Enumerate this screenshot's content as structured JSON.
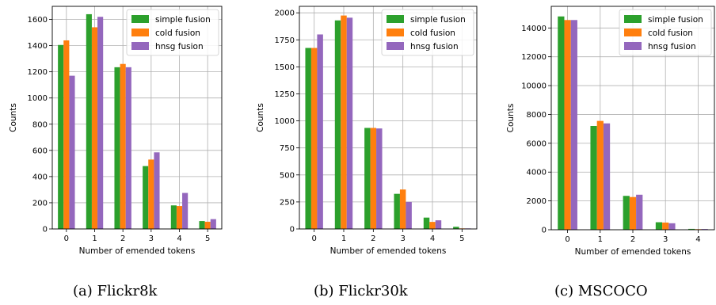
{
  "colors": {
    "simple": "#2ca02c",
    "cold": "#ff7f0e",
    "hnsg": "#9467bd",
    "grid": "#b0b0b0"
  },
  "chart_data": [
    {
      "type": "bar",
      "caption": "(a) Flickr8k",
      "xlabel": "Number of emended tokens",
      "ylabel": "Counts",
      "categories": [
        "0",
        "1",
        "2",
        "3",
        "4",
        "5"
      ],
      "ylim": [
        0,
        1700
      ],
      "yticks": [
        0,
        200,
        400,
        600,
        800,
        1000,
        1200,
        1400,
        1600
      ],
      "grid": true,
      "legend_position": "top-right",
      "series": [
        {
          "name": "simple fusion",
          "color": "#2ca02c",
          "values": [
            1405,
            1640,
            1235,
            480,
            180,
            60
          ]
        },
        {
          "name": "cold fusion",
          "color": "#ff7f0e",
          "values": [
            1440,
            1540,
            1260,
            530,
            175,
            55
          ]
        },
        {
          "name": "hnsg fusion",
          "color": "#9467bd",
          "values": [
            1170,
            1620,
            1235,
            585,
            275,
            75
          ]
        }
      ]
    },
    {
      "type": "bar",
      "caption": "(b) Flickr30k",
      "xlabel": "Number of emended tokens",
      "ylabel": "Counts",
      "categories": [
        "0",
        "1",
        "2",
        "3",
        "4",
        "5"
      ],
      "ylim": [
        0,
        2060
      ],
      "yticks": [
        0,
        250,
        500,
        750,
        1000,
        1250,
        1500,
        1750,
        2000
      ],
      "grid": true,
      "legend_position": "top-right",
      "series": [
        {
          "name": "simple fusion",
          "color": "#2ca02c",
          "values": [
            1675,
            1930,
            935,
            325,
            105,
            20
          ]
        },
        {
          "name": "cold fusion",
          "color": "#ff7f0e",
          "values": [
            1675,
            1975,
            935,
            365,
            65,
            5
          ]
        },
        {
          "name": "hnsg fusion",
          "color": "#9467bd",
          "values": [
            1800,
            1955,
            930,
            250,
            80,
            5
          ]
        }
      ]
    },
    {
      "type": "bar",
      "caption": "(c) MSCOCO",
      "xlabel": "Number of emended tokens",
      "ylabel": "Counts",
      "categories": [
        "0",
        "1",
        "2",
        "3",
        "4"
      ],
      "ylim": [
        0,
        15500
      ],
      "yticks": [
        0,
        2000,
        4000,
        6000,
        8000,
        10000,
        12000,
        14000
      ],
      "grid": true,
      "legend_position": "top-right",
      "series": [
        {
          "name": "simple fusion",
          "color": "#2ca02c",
          "values": [
            14800,
            7200,
            2350,
            520,
            60
          ]
        },
        {
          "name": "cold fusion",
          "color": "#ff7f0e",
          "values": [
            14550,
            7550,
            2270,
            500,
            40
          ]
        },
        {
          "name": "hnsg fusion",
          "color": "#9467bd",
          "values": [
            14550,
            7380,
            2430,
            450,
            50
          ]
        }
      ]
    }
  ]
}
